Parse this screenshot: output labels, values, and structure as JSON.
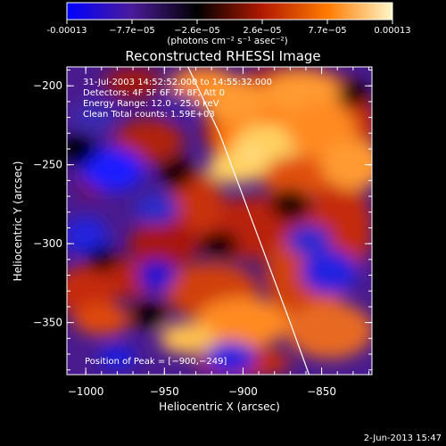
{
  "colorbar": {
    "tick_labels": [
      "-0.00013",
      "−7.7e−05",
      "−2.6e−05",
      "2.6e−05",
      "7.7e−05",
      "0.00013"
    ],
    "unit_label": "(photons cm⁻² s⁻¹ asec⁻²)",
    "colors": [
      "#0000ff",
      "#4b1b9a",
      "#000000",
      "#b21a00",
      "#ff7a00",
      "#fff7c8"
    ]
  },
  "chart_data": {
    "type": "heatmap",
    "title": "Reconstructed RHESSI Image",
    "xlabel": "Heliocentric X (arcsec)",
    "ylabel": "Heliocentric Y (arcsec)",
    "xlim": [
      -1012,
      -818
    ],
    "ylim": [
      -383,
      -188
    ],
    "x_ticks": [
      -1000,
      -950,
      -900,
      -850
    ],
    "y_ticks": [
      -200,
      -250,
      -300,
      -350
    ],
    "x_tick_labels": [
      "−1000",
      "−950",
      "−900",
      "−850"
    ],
    "y_tick_labels": [
      "−200",
      "−250",
      "−300",
      "−350"
    ],
    "value_range": [
      -0.00013,
      0.00013
    ],
    "limb_curve": [
      [
        -935,
        -188
      ],
      [
        -915,
        -230
      ],
      [
        -900,
        -270
      ],
      [
        -885,
        -310
      ],
      [
        -870,
        -350
      ],
      [
        -858,
        -383
      ]
    ],
    "peak": [
      -900,
      -249
    ]
  },
  "annotations": {
    "time_range": "31-Jul-2003 14:52:52.000 to 14:55:32.000",
    "detectors": "Detectors: 4F 5F 6F 7F 8F, Att 0",
    "energy": "Energy Range: 12.0 - 25.0 keV",
    "clean": "Clean    Total counts: 1.59E+03",
    "peak_label": "Position of Peak = [−900,−249]"
  },
  "footer": {
    "date": "2-Jun-2013 15:47"
  }
}
